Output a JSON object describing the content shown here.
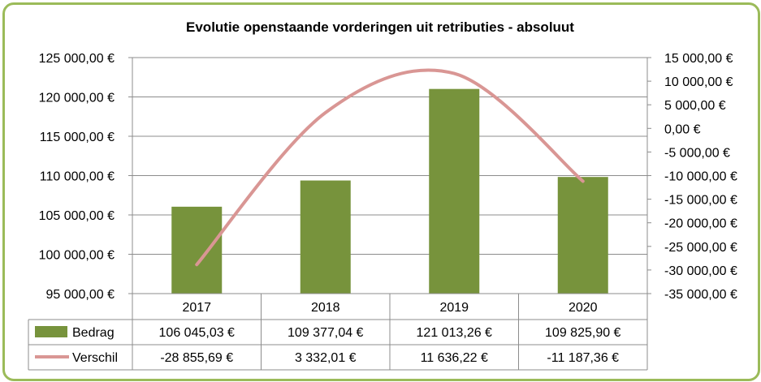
{
  "chart_data": {
    "type": "bar",
    "title": "Evolutie openstaande vorderingen uit retributies - absoluut",
    "categories": [
      "2017",
      "2018",
      "2019",
      "2020"
    ],
    "series": [
      {
        "name": "Bedrag",
        "type": "bar",
        "axis": "left",
        "color": "#77933c",
        "values": [
          106045.03,
          109377.04,
          121013.26,
          109825.9
        ],
        "labels": [
          "106 045,03 €",
          "109 377,04 €",
          "121 013,26 €",
          "109 825,90 €"
        ]
      },
      {
        "name": "Verschil",
        "type": "line",
        "smooth": true,
        "axis": "right",
        "color": "#d99694",
        "values": [
          -28855.69,
          3332.01,
          11636.22,
          -11187.36
        ],
        "labels": [
          "-28 855,69 €",
          "3 332,01 €",
          "11 636,22 €",
          "-11 187,36 €"
        ]
      }
    ],
    "y_left": {
      "min": 95000,
      "max": 125000,
      "step": 5000,
      "tick_labels": [
        "95 000,00 €",
        "100 000,00 €",
        "105 000,00 €",
        "110 000,00 €",
        "115 000,00 €",
        "120 000,00 €",
        "125 000,00 €"
      ]
    },
    "y_right": {
      "min": -35000,
      "max": 15000,
      "step": 5000,
      "tick_labels": [
        "-35 000,00 €",
        "-30 000,00 €",
        "-25 000,00 €",
        "-20 000,00 €",
        "-15 000,00 €",
        "-10 000,00 €",
        "-5 000,00 €",
        "0,00 €",
        "5 000,00 €",
        "10 000,00 €",
        "15 000,00 €"
      ]
    },
    "grid": true,
    "legend": "data-table"
  }
}
